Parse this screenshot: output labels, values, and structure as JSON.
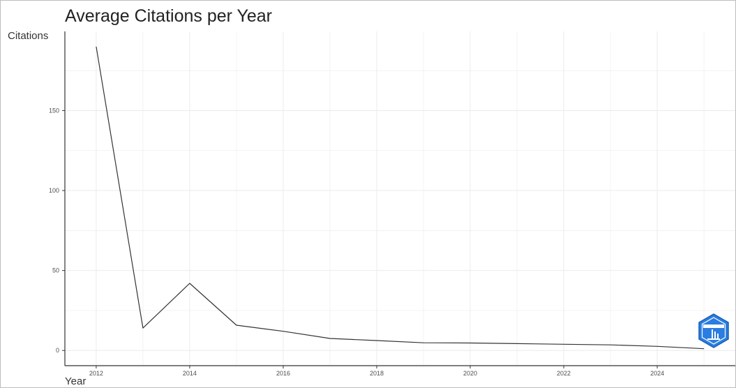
{
  "chart_data": {
    "type": "line",
    "title": "Average Citations per Year",
    "xlabel": "Year",
    "ylabel": "Citations",
    "x": [
      2012,
      2013,
      2014,
      2015,
      2016,
      2017,
      2018,
      2019,
      2020,
      2021,
      2022,
      2023,
      2024,
      2025
    ],
    "series": [
      {
        "values": [
          190,
          14,
          42,
          15.8,
          12,
          7.5,
          6.2,
          4.8,
          4.7,
          4.3,
          3.9,
          3.5,
          2.6,
          1.1
        ]
      }
    ],
    "xlim": [
      2011.33,
      2025.67
    ],
    "ylim": [
      -9.5,
      199.5
    ],
    "x_ticks": [
      2012,
      2014,
      2016,
      2018,
      2020,
      2022,
      2024
    ],
    "y_ticks": [
      0,
      50,
      100,
      150
    ],
    "grid": true,
    "line_color": "#333333",
    "grid_color": "#ebebeb"
  },
  "logo": {
    "name": "bibliometrix-logo",
    "colors": [
      "#1f6fd1",
      "#5aa9f0"
    ]
  }
}
